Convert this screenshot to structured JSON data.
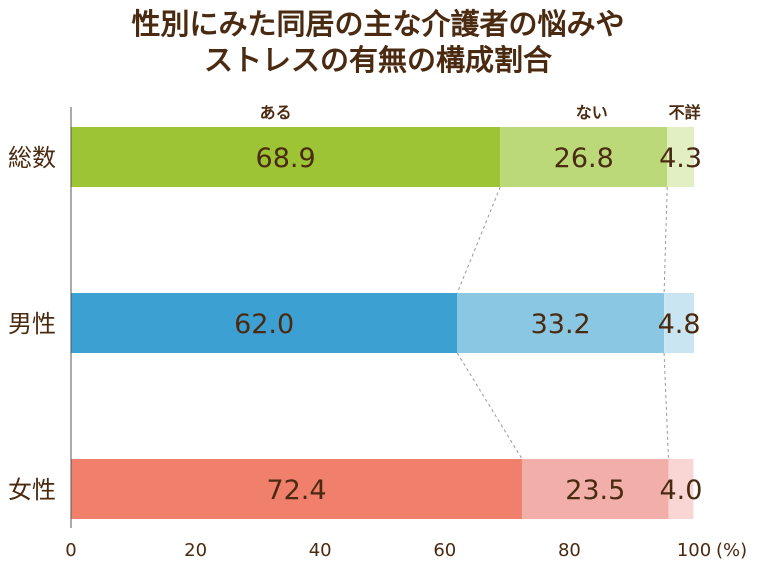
{
  "chart_data": {
    "type": "bar",
    "orientation": "horizontal",
    "stacked": true,
    "title_lines": [
      "性別にみた同居の主な介護者の悩みや",
      "ストレスの有無の構成割合"
    ],
    "categories": [
      "総数",
      "男性",
      "女性"
    ],
    "series": [
      {
        "name": "ある",
        "values": [
          68.9,
          62.0,
          72.4
        ]
      },
      {
        "name": "ない",
        "values": [
          26.8,
          33.2,
          23.5
        ]
      },
      {
        "name": "不詳",
        "values": [
          4.3,
          4.8,
          4.0
        ]
      }
    ],
    "value_labels": [
      [
        "68.9",
        "26.8",
        "4.3"
      ],
      [
        "62.0",
        "33.2",
        "4.8"
      ],
      [
        "72.4",
        "23.5",
        "4.0"
      ]
    ],
    "xlim": [
      0,
      100
    ],
    "x_ticks": [
      "0",
      "20",
      "40",
      "60",
      "80",
      "100"
    ],
    "x_unit": "(%)",
    "grid": false,
    "legend": "series names above top bar",
    "colors": [
      [
        "#9dc435",
        "#bcd97a",
        "#e2efc3"
      ],
      [
        "#3da0d3",
        "#8ac7e2",
        "#c9e5f2"
      ],
      [
        "#f07f6c",
        "#f2afa9",
        "#f9d6d3"
      ]
    ]
  }
}
